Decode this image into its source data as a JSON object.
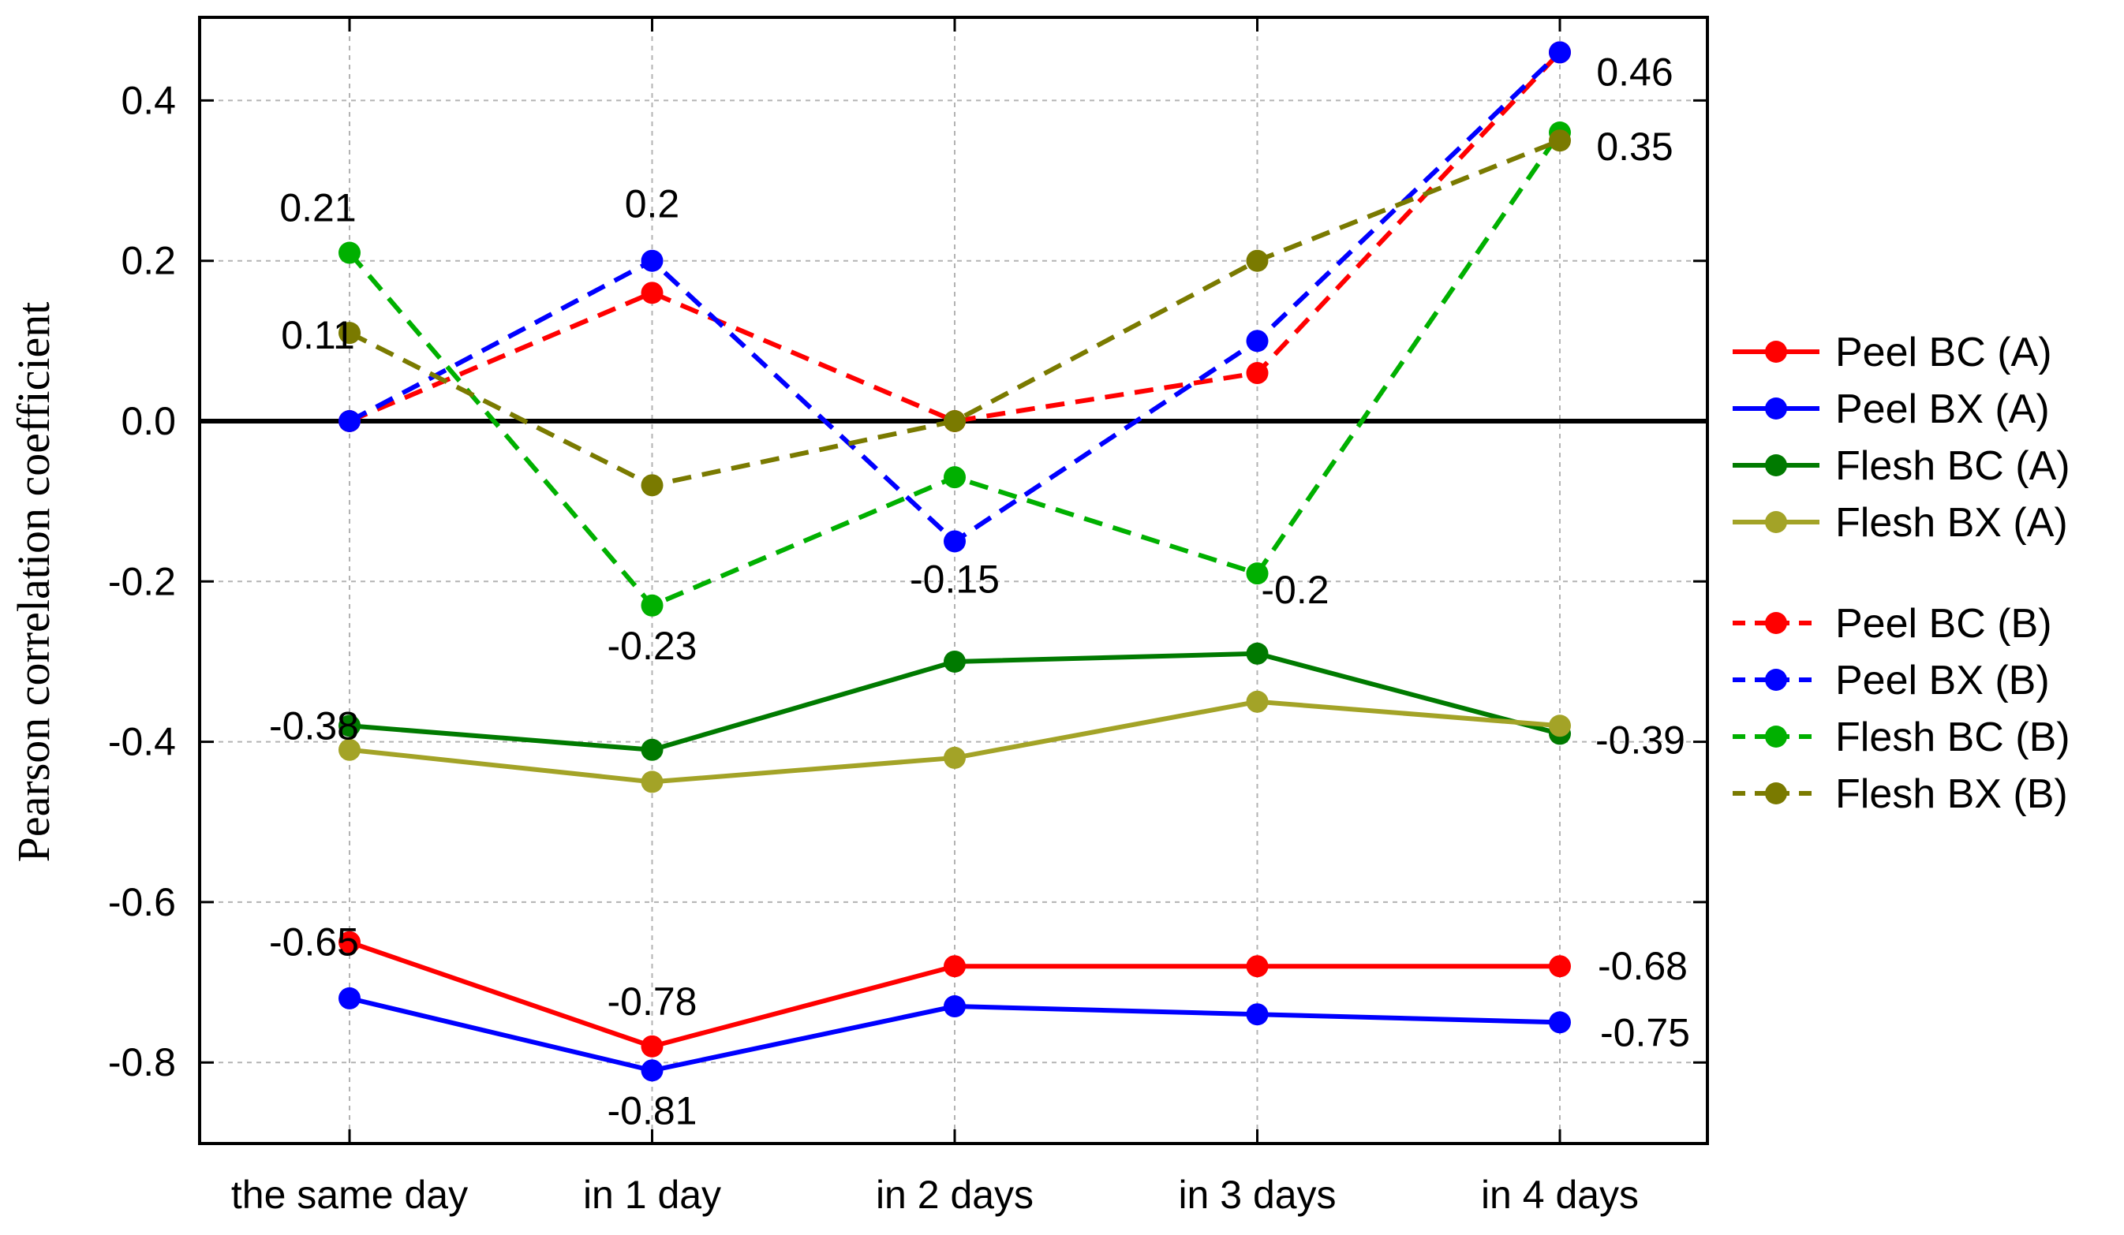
{
  "chart_data": {
    "type": "line",
    "title": "",
    "xlabel": "",
    "ylabel": "Pearson correlation coefficient",
    "categories": [
      "the same day",
      "in 1 day",
      "in 2 days",
      "in 3 days",
      "in 4 days"
    ],
    "ylim": [
      -0.9,
      0.5
    ],
    "yticks": [
      -0.8,
      -0.6,
      -0.4,
      -0.2,
      0.0,
      0.2,
      0.4
    ],
    "ytick_labels": [
      "-0.8",
      "-0.6",
      "-0.4",
      "-0.2",
      "0.0",
      "0.2",
      "0.4"
    ],
    "grid": true,
    "zero_line": true,
    "legend_position": "right",
    "series": [
      {
        "name": "Peel BC (A)",
        "color": "#ff0000",
        "dash": false,
        "values": [
          -0.65,
          -0.78,
          -0.68,
          -0.68,
          -0.68
        ]
      },
      {
        "name": "Peel BX (A)",
        "color": "#0000ff",
        "dash": false,
        "values": [
          -0.72,
          -0.81,
          -0.73,
          -0.74,
          -0.75
        ]
      },
      {
        "name": "Flesh BC (A)",
        "color": "#007a00",
        "dash": false,
        "values": [
          -0.38,
          -0.41,
          -0.3,
          -0.29,
          -0.39
        ]
      },
      {
        "name": "Flesh BX (A)",
        "color": "#a3a327",
        "dash": false,
        "values": [
          -0.41,
          -0.45,
          -0.42,
          -0.35,
          -0.38
        ]
      },
      {
        "name": "Peel BC (B)",
        "color": "#ff0000",
        "dash": true,
        "values": [
          0.0,
          0.16,
          0.0,
          0.06,
          0.46
        ]
      },
      {
        "name": "Peel BX (B)",
        "color": "#0000ff",
        "dash": true,
        "values": [
          0.0,
          0.2,
          -0.15,
          0.1,
          0.46
        ]
      },
      {
        "name": "Flesh BC (B)",
        "color": "#00b000",
        "dash": true,
        "values": [
          0.21,
          -0.23,
          -0.07,
          -0.19,
          0.36
        ]
      },
      {
        "name": "Flesh BX (B)",
        "color": "#7a7a00",
        "dash": true,
        "values": [
          0.11,
          -0.08,
          0.0,
          0.2,
          0.35
        ]
      }
    ],
    "annotations": [
      {
        "text": "0.21",
        "x": 0,
        "y": 0.21
      },
      {
        "text": "0.11",
        "x": 0,
        "y": 0.11
      },
      {
        "text": "-0.38",
        "x": 0,
        "y": -0.38
      },
      {
        "text": "-0.65",
        "x": 0,
        "y": -0.65
      },
      {
        "text": "0.2",
        "x": 1,
        "y": 0.2
      },
      {
        "text": "-0.23",
        "x": 1,
        "y": -0.23
      },
      {
        "text": "-0.78",
        "x": 1,
        "y": -0.78
      },
      {
        "text": "-0.81",
        "x": 1,
        "y": -0.81
      },
      {
        "text": "-0.15",
        "x": 2,
        "y": -0.15
      },
      {
        "text": "-0.2",
        "x": 3,
        "y": -0.19
      },
      {
        "text": "0.46",
        "x": 4,
        "y": 0.46
      },
      {
        "text": "0.35",
        "x": 4,
        "y": 0.35
      },
      {
        "text": "-0.39",
        "x": 4,
        "y": -0.39
      },
      {
        "text": "-0.68",
        "x": 4,
        "y": -0.68
      },
      {
        "text": "-0.75",
        "x": 4,
        "y": -0.75
      }
    ]
  }
}
